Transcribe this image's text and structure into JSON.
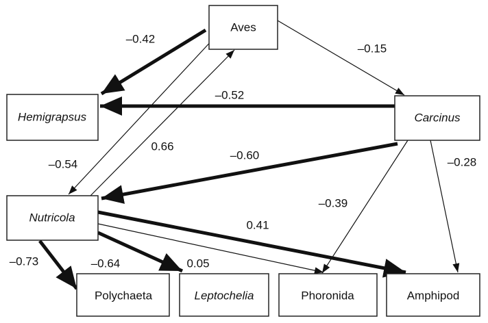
{
  "nodes": [
    {
      "label": "Aves"
    },
    {
      "label": "Hemigrapsus"
    },
    {
      "label": "Carcinus"
    },
    {
      "label": "Nutricola"
    },
    {
      "label": "Polychaeta"
    },
    {
      "label": "Leptochelia"
    },
    {
      "label": "Phoronida"
    },
    {
      "label": "Amphipod"
    }
  ],
  "edges": [
    {
      "label": "–0.42"
    },
    {
      "label": "–0.15"
    },
    {
      "label": "–0.52"
    },
    {
      "label": "–0.54"
    },
    {
      "label": "0.66"
    },
    {
      "label": "–0.60"
    },
    {
      "label": "–0.39"
    },
    {
      "label": "–0.28"
    },
    {
      "label": "–0.73"
    },
    {
      "label": "–0.64"
    },
    {
      "label": "0.05"
    },
    {
      "label": "0.41"
    }
  ]
}
